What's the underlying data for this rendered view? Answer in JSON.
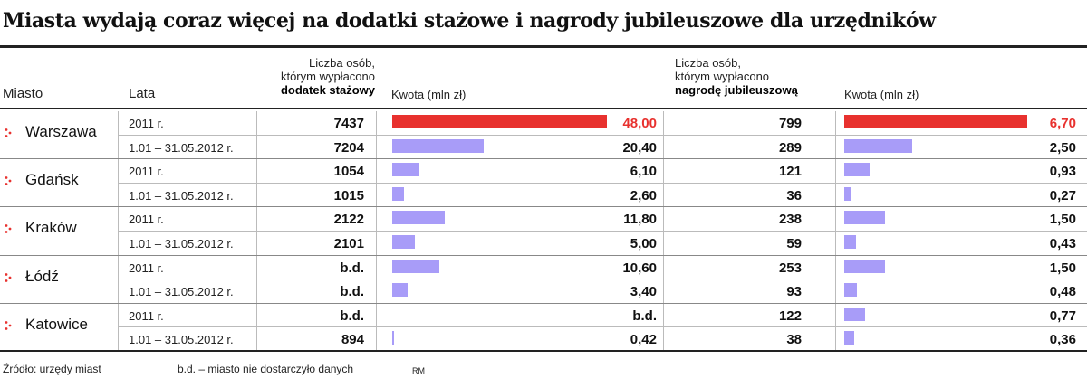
{
  "title": "Miasta wydają coraz więcej na dodatki stażowe i nagrody jubileuszowe dla urzędników",
  "headers": {
    "city": "Miasto",
    "years": "Lata",
    "count1_line1": "Liczba osób,",
    "count1_line2": "którym wypłacono",
    "count1_line3": "dodatek stażowy",
    "amount1": "Kwota (mln zł)",
    "count2_line1": "Liczba osób,",
    "count2_line2": "którym wypłacono",
    "count2_line3": "nagrodę jubileuszową",
    "amount2": "Kwota (mln zł)"
  },
  "footer": {
    "source": "Źródło: urzędy miast",
    "note": "b.d. – miasto nie dostarczyło danych",
    "initials": "RM"
  },
  "colors": {
    "highlight": "#e8312e",
    "bar": "#a89cf8",
    "arrow": "#e8312e",
    "rule": "#222222"
  },
  "chart_data": {
    "type": "table",
    "columns": [
      "Miasto",
      "Lata",
      "dodatek stażowy – liczba osób",
      "dodatek stażowy – kwota (mln zł)",
      "nagroda jubileuszowa – liczba osób",
      "nagroda jubileuszowa – kwota (mln zł)"
    ],
    "cities": [
      {
        "name": "Warszawa",
        "rows": [
          {
            "year": "2011 r.",
            "count1": "7437",
            "amount1": "48,00",
            "value1": 48.0,
            "count2": "799",
            "amount2": "6,70",
            "value2": 6.7
          },
          {
            "year": "1.01 – 31.05.2012 r.",
            "count1": "7204",
            "amount1": "20,40",
            "value1": 20.4,
            "count2": "289",
            "amount2": "2,50",
            "value2": 2.5
          }
        ]
      },
      {
        "name": "Gdańsk",
        "rows": [
          {
            "year": "2011 r.",
            "count1": "1054",
            "amount1": "6,10",
            "value1": 6.1,
            "count2": "121",
            "amount2": "0,93",
            "value2": 0.93
          },
          {
            "year": "1.01 – 31.05.2012 r.",
            "count1": "1015",
            "amount1": "2,60",
            "value1": 2.6,
            "count2": "36",
            "amount2": "0,27",
            "value2": 0.27
          }
        ]
      },
      {
        "name": "Kraków",
        "rows": [
          {
            "year": "2011 r.",
            "count1": "2122",
            "amount1": "11,80",
            "value1": 11.8,
            "count2": "238",
            "amount2": "1,50",
            "value2": 1.5
          },
          {
            "year": "1.01 – 31.05.2012 r.",
            "count1": "2101",
            "amount1": "5,00",
            "value1": 5.0,
            "count2": "59",
            "amount2": "0,43",
            "value2": 0.43
          }
        ]
      },
      {
        "name": "Łódź",
        "rows": [
          {
            "year": "2011 r.",
            "count1": "b.d.",
            "amount1": "10,60",
            "value1": 10.6,
            "count2": "253",
            "amount2": "1,50",
            "value2": 1.5
          },
          {
            "year": "1.01 – 31.05.2012 r.",
            "count1": "b.d.",
            "amount1": "3,40",
            "value1": 3.4,
            "count2": "93",
            "amount2": "0,48",
            "value2": 0.48
          }
        ]
      },
      {
        "name": "Katowice",
        "rows": [
          {
            "year": "2011 r.",
            "count1": "b.d.",
            "amount1": "b.d.",
            "value1": null,
            "count2": "122",
            "amount2": "0,77",
            "value2": 0.77
          },
          {
            "year": "1.01 – 31.05.2012 r.",
            "count1": "894",
            "amount1": "0,42",
            "value1": 0.42,
            "count2": "38",
            "amount2": "0,36",
            "value2": 0.36
          }
        ]
      }
    ],
    "max1": 48.0,
    "max2": 6.7
  }
}
